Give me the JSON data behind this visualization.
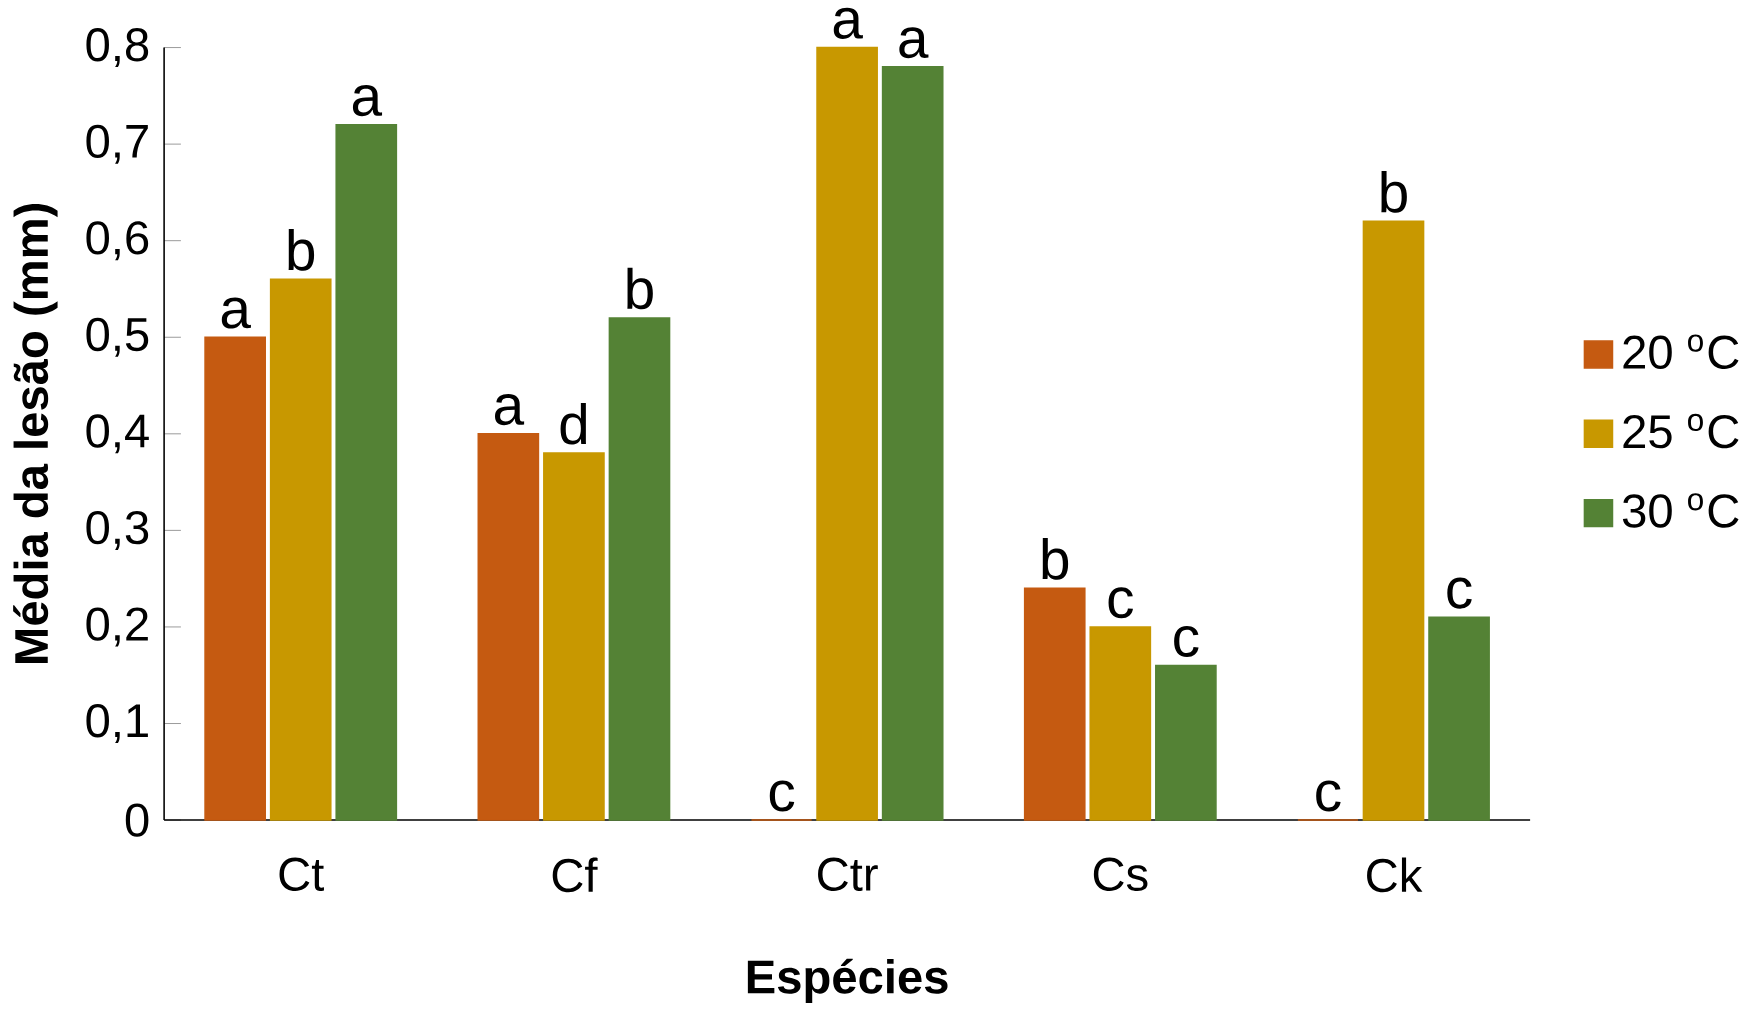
{
  "chart_data": {
    "type": "bar",
    "xlabel": "Espécies",
    "ylabel": "Média da lesão (mm)",
    "categories": [
      "Ct",
      "Cf",
      "Ctr",
      "Cs",
      "Ck"
    ],
    "series": [
      {
        "name": "20 $^{o}$C",
        "color": "#c55a11",
        "values": [
          0.5,
          0.4,
          0,
          0.24,
          0
        ],
        "value_labels": [
          "a",
          "a",
          "c",
          "b",
          "c"
        ]
      },
      {
        "name": "25 $^{o}$C",
        "color": "#c89800",
        "values": [
          0.56,
          0.38,
          0.8,
          0.2,
          0.62
        ],
        "value_labels": [
          "b",
          "d",
          "a",
          "c",
          "b"
        ]
      },
      {
        "name": "30 $^{o}$C",
        "color": "#548235",
        "values": [
          0.72,
          0.52,
          0.78,
          0.16,
          0.21
        ],
        "value_labels": [
          "a",
          "b",
          "a",
          "c",
          "c"
        ]
      }
    ],
    "ylim": [
      0,
      0.8
    ],
    "yticks": [
      0,
      {
        "value": 0.1,
        "label": "0,1"
      },
      {
        "value": 0.2,
        "label": "0,2"
      },
      {
        "value": 0.3,
        "label": "0,3"
      },
      {
        "value": 0.4,
        "label": "0,4"
      },
      {
        "value": 0.5,
        "label": "0,5"
      },
      {
        "value": 0.6,
        "label": "0,6"
      },
      {
        "value": 0.7,
        "label": "0,7"
      },
      {
        "value": 0.8,
        "label": "0,8"
      }
    ],
    "grid": false,
    "legend": "right"
  }
}
